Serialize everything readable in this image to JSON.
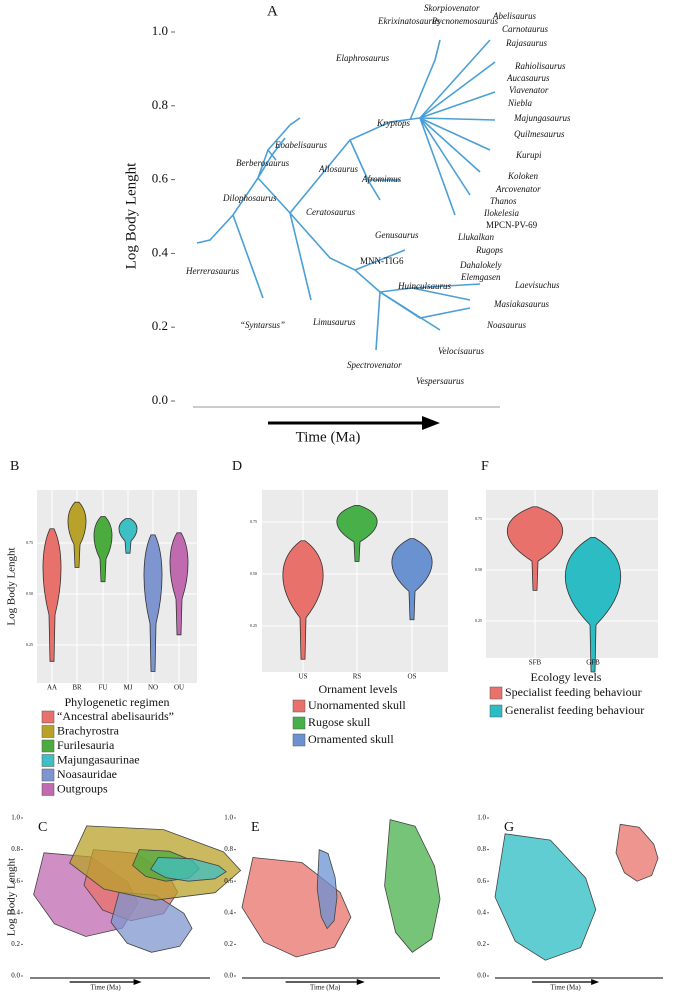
{
  "chart_data": [
    {
      "type": "tree",
      "panel": "A",
      "ylabel": "Log Body Lenght",
      "xlabel": "Time (Ma)",
      "ylim": [
        0,
        1
      ],
      "yticks": [
        {
          "value": 0,
          "label": "0.0"
        },
        0.2,
        0.4,
        0.6,
        0.8,
        {
          "value": 1,
          "label": "1.0"
        }
      ],
      "taxa": [
        "Herrerasaurus",
        "“Syntarsus”",
        "Limusaurus",
        "Dilophosaurus",
        "Berberosaurus",
        "Eoabelisaurus",
        "Allosaurus",
        "Ceratosaurus",
        "Elaphrosaurus",
        "Ekrixinatosaurus",
        "Skorpiovenator",
        "Pycnonemosaurus",
        "Kryptops",
        "Afromimus",
        "Genusaurus",
        "MNN-TIG6",
        "Huinculsaurus",
        "Spectrovenator",
        "Velocisaurus",
        "Vespersaurus",
        "Noasaurus",
        "Masiakasaurus",
        "Laevisuchus",
        "Elemgasen",
        "Dahalokely",
        "Rugops",
        "Llukalkan",
        "MPCN-PV-69",
        "Ilokelesia",
        "Thanos",
        "Arcovenator",
        "Koloken",
        "Kurupi",
        "Quilmesaurus",
        "Majungasaurus",
        "Niebla",
        "Viavenator",
        "Aucasaurus",
        "Rahiolisaurus",
        "Rajasaurus",
        "Carnotaurus",
        "Abelisaurus"
      ]
    },
    {
      "type": "violin",
      "panel": "B",
      "ylabel": "Log Body Lenght",
      "xlabel": "Phylogenetic regimen",
      "ylim": [
        0.1,
        0.97
      ],
      "yticks": [
        0.25,
        {
          "value": 0.5,
          "label": "0.50"
        },
        0.75
      ],
      "categories": [
        "AA",
        "BR",
        "FU",
        "MJ",
        "NO",
        "OU"
      ],
      "series": [
        {
          "name": "“Ancestral abelisaurids”",
          "color": "#e8726b",
          "values": [
            0.17,
            0.82
          ]
        },
        {
          "name": "Brachyrostra",
          "color": "#b8a22a",
          "values": [
            0.63,
            0.95
          ]
        },
        {
          "name": "Furilesauria",
          "color": "#4cab3e",
          "values": [
            0.56,
            0.88
          ]
        },
        {
          "name": "Majungasaurinae",
          "color": "#3dbfc4",
          "values": [
            0.7,
            0.87
          ]
        },
        {
          "name": "Noasauridae",
          "color": "#7f95cf",
          "values": [
            0.12,
            0.79
          ]
        },
        {
          "name": "Outgroups",
          "color": "#c06ab0",
          "values": [
            0.3,
            0.8
          ]
        }
      ]
    },
    {
      "type": "violin",
      "panel": "D",
      "xlabel": "Ornament levels",
      "ylim": [
        0.05,
        0.9
      ],
      "yticks": [
        0.25,
        {
          "value": 0.5,
          "label": "0.50"
        },
        0.75
      ],
      "categories": [
        "US",
        "RS",
        "OS"
      ],
      "series": [
        {
          "name": "Unornamented skull",
          "color": "#e8726b",
          "values": [
            0.09,
            0.66
          ]
        },
        {
          "name": "Rugose skull",
          "color": "#47b049",
          "values": [
            0.56,
            0.83
          ]
        },
        {
          "name": "Ornamented skull",
          "color": "#6a92d1",
          "values": [
            0.28,
            0.67
          ]
        }
      ]
    },
    {
      "type": "violin",
      "panel": "F",
      "xlabel": "Ecology levels",
      "ylim": [
        -0.05,
        0.85
      ],
      "yticks": [
        0.25,
        {
          "value": 0.5,
          "label": "0.50"
        },
        0.75
      ],
      "categories": [
        "SFB",
        "GFB"
      ],
      "series": [
        {
          "name": "Specialist feeding behaviour",
          "color": "#e8726b",
          "values": [
            0.4,
            0.81
          ]
        },
        {
          "name": "Generalist feeding behaviour",
          "color": "#2bbcc4",
          "values": [
            0,
            0.66
          ]
        }
      ]
    },
    {
      "type": "area",
      "panel": "C",
      "ylabel": "Log Body Lenght",
      "xlabel": "Time (Ma)",
      "ylim": [
        0,
        1
      ],
      "yticks": [
        {
          "value": 0,
          "label": "0.0"
        },
        0.2,
        0.4,
        0.6,
        0.8,
        {
          "value": 1,
          "label": "1.0"
        }
      ],
      "series": [
        {
          "color": "#c06ab0",
          "values": [
            0.25,
            0.78
          ]
        },
        {
          "color": "#e8726b",
          "values": [
            0.35,
            0.8
          ]
        },
        {
          "color": "#7f95cf",
          "values": [
            0.15,
            0.53
          ]
        },
        {
          "color": "#b8a22a",
          "values": [
            0.48,
            0.95
          ]
        },
        {
          "color": "#4cab3e",
          "values": [
            0.6,
            0.8
          ]
        },
        {
          "color": "#3dbfc4",
          "values": [
            0.6,
            0.75
          ]
        }
      ]
    },
    {
      "type": "area",
      "panel": "E",
      "xlabel": "Time (Ma)",
      "ylim": [
        0,
        1
      ],
      "yticks": [
        {
          "value": 0,
          "label": "0.0"
        },
        0.2,
        0.4,
        0.6,
        0.8,
        {
          "value": 1,
          "label": "1.0"
        }
      ],
      "series": [
        {
          "color": "#e8726b",
          "values": [
            0.12,
            0.75
          ]
        },
        {
          "color": "#6a92d1",
          "values": [
            0.3,
            0.8
          ]
        },
        {
          "color": "#47b049",
          "values": [
            0.15,
            0.99
          ]
        }
      ]
    },
    {
      "type": "area",
      "panel": "G",
      "xlabel": "Time (Ma)",
      "ylim": [
        0,
        1
      ],
      "yticks": [
        {
          "value": 0,
          "label": "0.0"
        },
        0.2,
        0.4,
        0.6,
        0.8,
        {
          "value": 1,
          "label": "1.0"
        }
      ],
      "series": [
        {
          "color": "#2bbcc4",
          "values": [
            0.1,
            0.9
          ]
        },
        {
          "color": "#e8726b",
          "values": [
            0.6,
            0.96
          ]
        }
      ]
    }
  ]
}
